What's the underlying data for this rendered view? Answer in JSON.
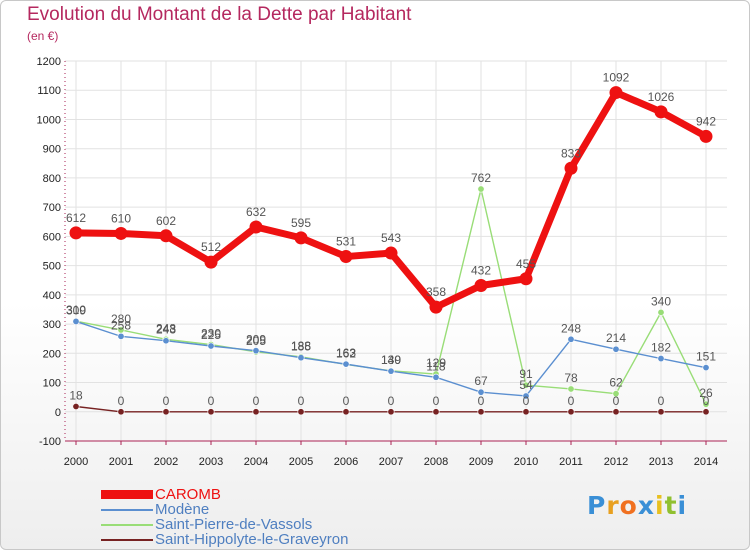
{
  "chart_data": {
    "type": "line",
    "title": "Evolution du Montant de la Dette par Habitant",
    "subtitle": "(en €)",
    "x": [
      "2000",
      "2001",
      "2002",
      "2003",
      "2004",
      "2005",
      "2006",
      "2007",
      "2008",
      "2009",
      "2010",
      "2011",
      "2012",
      "2013",
      "2014"
    ],
    "ylim": [
      -100,
      1200
    ],
    "yticks": [
      -100,
      0,
      100,
      200,
      300,
      400,
      500,
      600,
      700,
      800,
      900,
      1000,
      1100,
      1200
    ],
    "grid": true,
    "legend_position": "bottom-left",
    "series": [
      {
        "name": "CAROMB",
        "color": "#ee1111",
        "emphasis": true,
        "values": [
          612,
          610,
          602,
          512,
          632,
          595,
          531,
          543,
          358,
          432,
          455,
          833,
          1092,
          1026,
          942
        ],
        "labels": [
          "612",
          "610",
          "602",
          "512",
          "632",
          "595",
          "531",
          "543",
          "358",
          "432",
          "455",
          "833",
          "1092",
          "1026",
          "942"
        ]
      },
      {
        "name": "Modène",
        "color": "#5b8fd0",
        "values": [
          309,
          258,
          243,
          225,
          209,
          185,
          163,
          139,
          118,
          67,
          54,
          248,
          214,
          182,
          151
        ],
        "labels": [
          "309",
          "258",
          "243",
          "225",
          "209",
          "185",
          "163",
          "139",
          "118",
          "67",
          "54",
          "248",
          "214",
          "182",
          "151"
        ]
      },
      {
        "name": "Saint-Pierre-de-Vassols",
        "color": "#99dd77",
        "values": [
          310,
          280,
          248,
          230,
          205,
          188,
          162,
          140,
          129,
          762,
          91,
          78,
          62,
          340,
          26
        ],
        "labels": [
          "310",
          "280",
          "248",
          "230",
          "205",
          "188",
          "162",
          "140",
          "129",
          "762",
          "91",
          "78",
          "62",
          "340",
          "26"
        ]
      },
      {
        "name": "Saint-Hippolyte-le-Graveyron",
        "color": "#772222",
        "values": [
          18,
          0,
          0,
          0,
          0,
          0,
          0,
          0,
          0,
          0,
          0,
          0,
          0,
          0,
          0
        ],
        "labels": [
          "18",
          "0",
          "0",
          "0",
          "0",
          "0",
          "0",
          "0",
          "0",
          "0",
          "0",
          "0",
          "0",
          "0",
          "0"
        ]
      }
    ]
  },
  "logo": {
    "letters": [
      "P",
      "r",
      "o",
      "x",
      "i",
      "t",
      "i"
    ],
    "colors": [
      "#3a8fd6",
      "#e8a020",
      "#f07020",
      "#3a8fd6",
      "#e8c020",
      "#90c030",
      "#3a8fd6"
    ]
  },
  "colors": {
    "title": "#b5285f",
    "axis_text": "#222222",
    "grid": "#e2e2e2",
    "axis": "#aa2255",
    "value_label": "#555555"
  }
}
